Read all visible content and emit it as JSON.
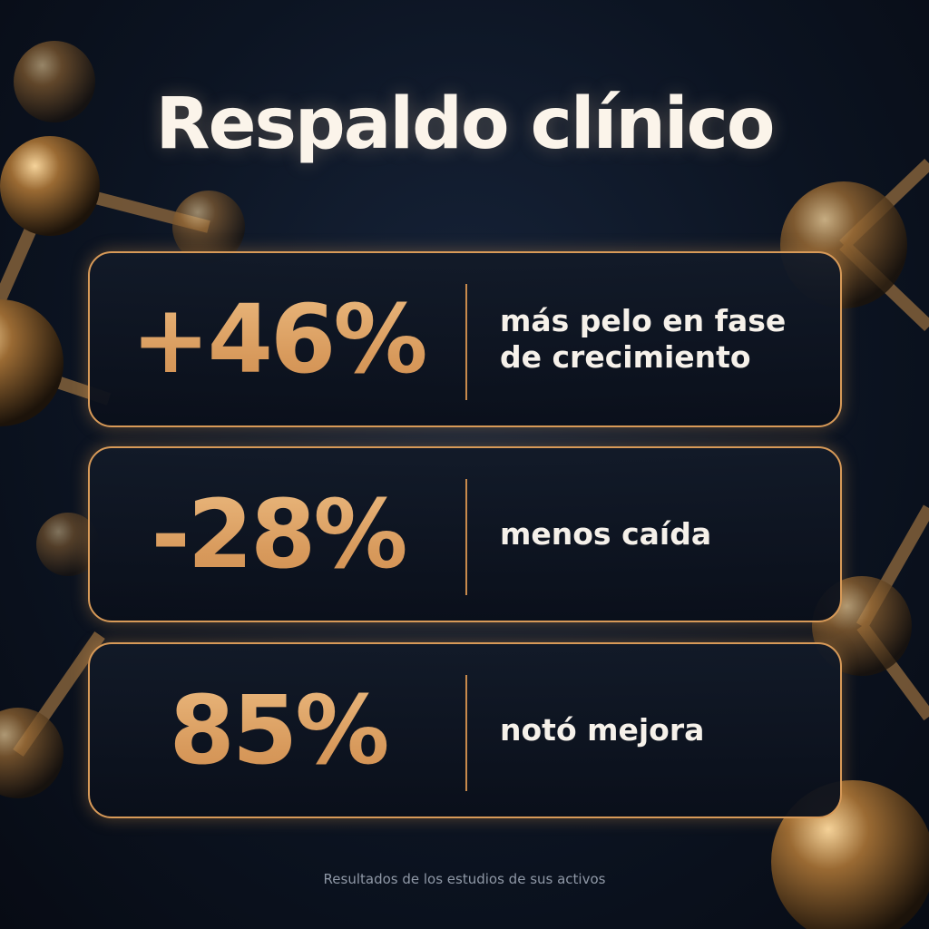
{
  "title": "Respaldo clínico",
  "stats": [
    {
      "value": "+46%",
      "description": "más pelo en fase de crecimiento"
    },
    {
      "value": "-28%",
      "description": "menos caída"
    },
    {
      "value": "85%",
      "description": "notó mejora"
    }
  ],
  "footer": "Resultados de los estudios de sus activos"
}
